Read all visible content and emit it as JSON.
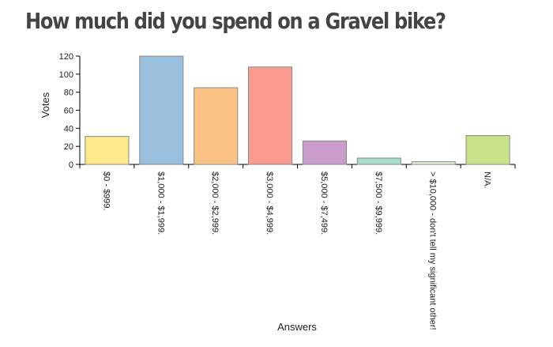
{
  "title": "How much did you spend on a Gravel bike?",
  "chart_data": {
    "type": "bar",
    "title": "How much did you spend on a Gravel bike?",
    "xlabel": "Answers",
    "ylabel": "Votes",
    "ylim": [
      0,
      120
    ],
    "yticks": [
      0,
      20,
      40,
      60,
      80,
      100,
      120
    ],
    "categories": [
      "$0 - $999.",
      "$1,000 - $1,999.",
      "$2,000 - $2,999.",
      "$3,000 - $4,999.",
      "$5,000 - $7,499.",
      "$7,500 - $9,999.",
      "> $10,000 - don't tell my significant other!",
      "N/A."
    ],
    "values": [
      31,
      120,
      85,
      108,
      26,
      7,
      3,
      32
    ],
    "colors": [
      "#fde98a",
      "#99bfdc",
      "#fbc385",
      "#fb9a8e",
      "#c99ccb",
      "#a8dccb",
      "#dff0d3",
      "#c6e388"
    ],
    "grid": false,
    "legend": "none"
  }
}
